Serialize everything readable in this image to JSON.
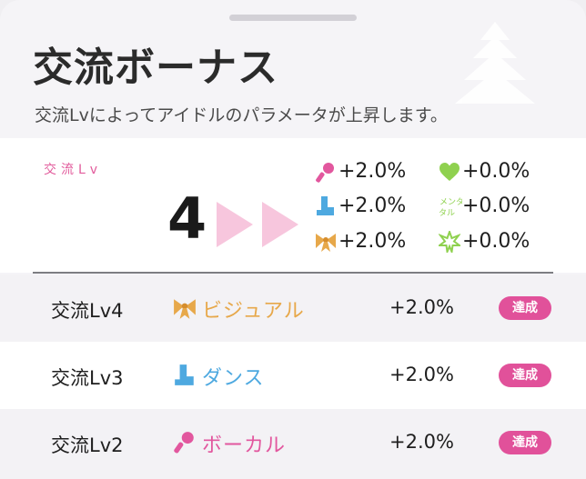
{
  "header": {
    "title": "交流ボーナス",
    "subtitle": "交流Lvによってアイドルのパラメータが上昇します。"
  },
  "summary": {
    "lv_label": "交流Lv",
    "level": "4",
    "stats": [
      {
        "icon": "microphone-icon",
        "value": "+2.0%"
      },
      {
        "icon": "heart-icon",
        "value": "+0.0%"
      },
      {
        "icon": "boot-icon",
        "value": "+2.0%"
      },
      {
        "icon": "mental-icon",
        "icon_text": "メンタル",
        "value": "+0.0%"
      },
      {
        "icon": "ribbon-icon",
        "value": "+2.0%"
      },
      {
        "icon": "star-burst-icon",
        "value": "+0.0%"
      }
    ]
  },
  "rows": [
    {
      "name": "交流Lv4",
      "icon": "ribbon-icon",
      "type": "ビジュアル",
      "type_color": "#e7a84a",
      "value": "+2.0%",
      "status": "達成"
    },
    {
      "name": "交流Lv3",
      "icon": "boot-icon",
      "type": "ダンス",
      "type_color": "#4ea9e0",
      "value": "+2.0%",
      "status": "達成"
    },
    {
      "name": "交流Lv2",
      "icon": "microphone-icon",
      "type": "ボーカル",
      "type_color": "#e2579e",
      "value": "+2.0%",
      "status": "達成"
    }
  ],
  "colors": {
    "accent_pink": "#e1519a",
    "visual_orange": "#e7a84a",
    "dance_blue": "#4ea9e0",
    "vocal_pink": "#e2579e",
    "mental_green": "#8fd14f"
  }
}
